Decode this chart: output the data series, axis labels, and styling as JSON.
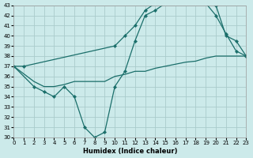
{
  "xlabel": "Humidex (Indice chaleur)",
  "bg_color": "#cceaea",
  "grid_color": "#aacccc",
  "line_color": "#1a6e6a",
  "xlim": [
    0,
    23
  ],
  "ylim": [
    30,
    43
  ],
  "xticks": [
    0,
    1,
    2,
    3,
    4,
    5,
    6,
    7,
    8,
    9,
    10,
    11,
    12,
    13,
    14,
    15,
    16,
    17,
    18,
    19,
    20,
    21,
    22,
    23
  ],
  "yticks": [
    30,
    31,
    32,
    33,
    34,
    35,
    36,
    37,
    38,
    39,
    40,
    41,
    42,
    43
  ],
  "line1_x": [
    0,
    1,
    10,
    11,
    12,
    13,
    14,
    15,
    16,
    17,
    18,
    19,
    20,
    21,
    22,
    23
  ],
  "line1_y": [
    37,
    37,
    39,
    40,
    41,
    42.5,
    43.2,
    43.3,
    43.2,
    43.2,
    43.2,
    43.2,
    43.0,
    40.0,
    39.5,
    38.0
  ],
  "line2_x": [
    0,
    2,
    3,
    4,
    5,
    6,
    7,
    8,
    9,
    10,
    11,
    12,
    13,
    14,
    15,
    16,
    17,
    18,
    19,
    20,
    21,
    22,
    23
  ],
  "line2_y": [
    37,
    35,
    34.5,
    34,
    35,
    34,
    31,
    30,
    30.5,
    35,
    36.5,
    39.5,
    42,
    42.5,
    43.2,
    43.2,
    43.2,
    43.2,
    43.2,
    42,
    40.2,
    38.5,
    38.0
  ],
  "line3_x": [
    0,
    2,
    3,
    4,
    5,
    6,
    7,
    8,
    9,
    10,
    11,
    12,
    13,
    14,
    15,
    16,
    17,
    18,
    19,
    20,
    21,
    22,
    23
  ],
  "line3_y": [
    37,
    35.5,
    35,
    35,
    35.2,
    35.5,
    35.5,
    35.5,
    35.5,
    36,
    36.2,
    36.5,
    36.5,
    36.8,
    37,
    37.2,
    37.4,
    37.5,
    37.8,
    38.0,
    38.0,
    38.0,
    38.0
  ]
}
